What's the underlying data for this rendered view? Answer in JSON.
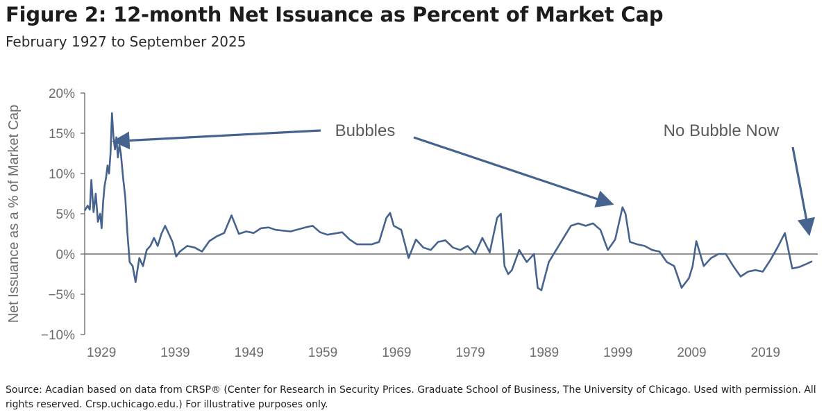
{
  "figure": {
    "title": "Figure 2: 12-month Net Issuance as Percent of Market Cap",
    "subtitle": "February 1927 to September 2025",
    "source": "Source: Acadian based on data from CRSP® (Center for Research in Security Prices. Graduate School of Business, The University of Chicago. Used with permission. All rights reserved. Crsp.uchicago.edu.) For illustrative purposes only."
  },
  "colors": {
    "line": "#45638e",
    "axis": "#7a7a7a",
    "text": "#6b6b6b",
    "annotation": "#5a5a5a"
  },
  "chart_data": {
    "type": "line",
    "title": "Figure 2: 12-month Net Issuance as Percent of Market Cap",
    "subtitle": "February 1927 to September 2025",
    "xlabel": "",
    "ylabel": "Net Issuance as a % of Market Cap",
    "ylim": [
      -10,
      20
    ],
    "xlim": [
      1927.1,
      2025.7
    ],
    "y_ticks": [
      -10,
      -5,
      0,
      5,
      10,
      15,
      20
    ],
    "y_tick_labels": [
      "−10%",
      "−5%",
      "0%",
      "5%",
      "10%",
      "15%",
      "20%"
    ],
    "x_ticks": [
      1929,
      1939,
      1949,
      1959,
      1969,
      1979,
      1989,
      1999,
      2009,
      2019
    ],
    "x_tick_labels": [
      "1929",
      "1939",
      "1949",
      "1959",
      "1969",
      "1979",
      "1989",
      "1999",
      "2009",
      "2019"
    ],
    "grid": false,
    "series": [
      {
        "name": "12-month Net Issuance as % of Market Cap",
        "x": [
          1927.1,
          1927.5,
          1927.8,
          1928.0,
          1928.3,
          1928.6,
          1928.9,
          1929.2,
          1929.4,
          1929.6,
          1929.8,
          1930.0,
          1930.2,
          1930.4,
          1930.6,
          1930.8,
          1931.0,
          1931.2,
          1931.4,
          1931.6,
          1931.8,
          1932.0,
          1932.3,
          1932.6,
          1932.9,
          1933.2,
          1933.6,
          1934.0,
          1934.5,
          1935.0,
          1935.5,
          1936.0,
          1936.5,
          1937.0,
          1937.5,
          1938.0,
          1938.5,
          1939.0,
          1939.5,
          1940.0,
          1941.0,
          1942.0,
          1943.0,
          1944.0,
          1945.0,
          1946.0,
          1947.0,
          1948.0,
          1949.0,
          1950.0,
          1951.0,
          1952.0,
          1953.0,
          1955.0,
          1957.0,
          1958.0,
          1959.0,
          1960.0,
          1962.0,
          1963.0,
          1964.0,
          1966.0,
          1967.0,
          1968.0,
          1968.5,
          1969.0,
          1970.0,
          1971.0,
          1972.0,
          1973.0,
          1974.0,
          1975.0,
          1976.0,
          1977.0,
          1978.0,
          1979.0,
          1980.0,
          1981.0,
          1982.0,
          1983.0,
          1983.5,
          1984.0,
          1984.5,
          1985.0,
          1986.0,
          1987.0,
          1988.0,
          1988.5,
          1989.0,
          1990.0,
          1991.0,
          1992.0,
          1993.0,
          1994.0,
          1995.0,
          1996.0,
          1997.0,
          1998.0,
          1999.0,
          2000.0,
          2000.4,
          2001.0,
          2002.0,
          2003.0,
          2004.0,
          2005.0,
          2006.0,
          2007.0,
          2008.0,
          2009.0,
          2009.5,
          2010.0,
          2011.0,
          2012.0,
          2013.0,
          2014.0,
          2015.0,
          2016.0,
          2017.0,
          2018.0,
          2019.0,
          2020.0,
          2021.0,
          2022.0,
          2023.0,
          2024.0,
          2025.0,
          2025.7
        ],
        "values": [
          5.4,
          6.0,
          5.5,
          9.2,
          5.2,
          7.5,
          4.0,
          5.0,
          3.2,
          6.5,
          8.5,
          9.5,
          11.0,
          10.0,
          12.5,
          17.5,
          14.5,
          13.0,
          14.5,
          12.0,
          13.5,
          12.5,
          9.5,
          7.0,
          2.5,
          -1.0,
          -1.5,
          -3.5,
          -0.5,
          -1.5,
          0.5,
          1.0,
          2.0,
          1.0,
          2.5,
          3.5,
          2.5,
          1.5,
          -0.3,
          0.3,
          1.0,
          0.8,
          0.3,
          1.6,
          2.2,
          2.6,
          4.8,
          2.5,
          2.8,
          2.6,
          3.2,
          3.3,
          3.0,
          2.8,
          3.3,
          3.5,
          2.7,
          2.4,
          2.7,
          1.8,
          1.2,
          1.2,
          1.5,
          4.5,
          5.1,
          3.5,
          3.0,
          -0.5,
          1.8,
          0.8,
          0.5,
          1.5,
          1.7,
          0.8,
          0.5,
          1.0,
          0.0,
          2.0,
          0.2,
          4.5,
          5.0,
          -1.5,
          -2.5,
          -2.0,
          0.5,
          -1.0,
          0.0,
          -4.2,
          -4.5,
          -1.0,
          0.5,
          2.0,
          3.5,
          3.8,
          3.5,
          3.8,
          3.0,
          0.5,
          1.8,
          5.8,
          5.0,
          1.5,
          1.2,
          1.0,
          0.5,
          0.3,
          -1.0,
          -1.5,
          -4.2,
          -3.0,
          -1.5,
          1.6,
          -1.5,
          -0.5,
          0.0,
          0.0,
          -1.5,
          -2.8,
          -2.2,
          -2.0,
          -2.2,
          -0.8,
          0.8,
          2.6,
          -1.8,
          -1.6,
          -1.2,
          -0.9
        ]
      }
    ],
    "annotations": [
      {
        "text": "Bubbles",
        "points_to": [
          {
            "x": 1930.7,
            "y": 14.0
          },
          {
            "x": 1999.5,
            "y": 5.7
          }
        ]
      },
      {
        "text": "No Bubble Now",
        "points_to": [
          {
            "x": 2025.1,
            "y": 1.8
          }
        ]
      }
    ]
  }
}
